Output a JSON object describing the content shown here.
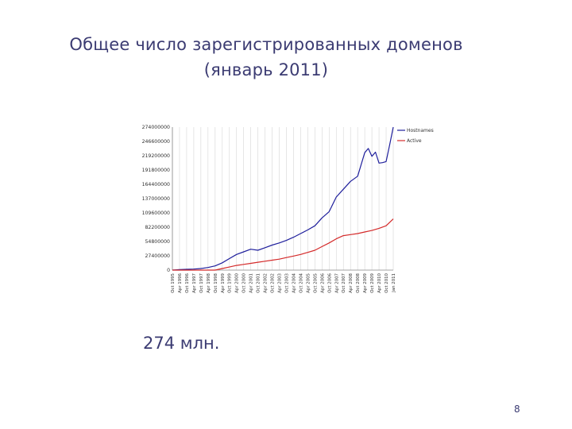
{
  "slide": {
    "title_line1": "Общее число зарегистрированных доменов",
    "title_line2": "(январь 2011)",
    "caption": "274 млн.",
    "page_number": "8"
  },
  "chart_data": {
    "type": "line",
    "title": "",
    "xlabel": "",
    "ylabel": "",
    "ylim": [
      0,
      274000000
    ],
    "yticks": [
      "0",
      "27400000",
      "54800000",
      "82200000",
      "109600000",
      "137000000",
      "164400000",
      "191800000",
      "219200000",
      "246600000",
      "274000000"
    ],
    "x_tick_labels": [
      "Oct 1995",
      "Apr 1996",
      "Oct 1996",
      "Apr 1997",
      "Oct 1997",
      "Apr 1998",
      "Oct 1998",
      "Apr 1999",
      "Oct 1999",
      "Apr 2000",
      "Oct 2000",
      "Apr 2001",
      "Oct 2001",
      "Apr 2002",
      "Oct 2002",
      "Apr 2003",
      "Oct 2003",
      "Apr 2004",
      "Oct 2004",
      "Apr 2005",
      "Oct 2005",
      "Apr 2006",
      "Oct 2006",
      "Apr 2007",
      "Oct 2007",
      "Apr 2008",
      "Oct 2008",
      "Apr 2009",
      "Oct 2009",
      "Apr 2010",
      "Oct 2010",
      "Jan 2011"
    ],
    "grid": true,
    "legend_position": "top-right",
    "series": [
      {
        "name": "Hostnames",
        "color": "#1f1f9c",
        "x": [
          0,
          1,
          2,
          3,
          4,
          5,
          6,
          7,
          8,
          9,
          10,
          11,
          12,
          13,
          14,
          15,
          16,
          17,
          18,
          19,
          20,
          21,
          22,
          23,
          24,
          25,
          26,
          27,
          27.5,
          28,
          28.5,
          29,
          29.5,
          30,
          30.5,
          31
        ],
        "values": [
          0,
          1000000,
          1500000,
          2000000,
          3000000,
          5000000,
          8000000,
          14000000,
          22000000,
          30000000,
          35000000,
          40000000,
          38000000,
          43000000,
          48000000,
          52000000,
          57000000,
          63000000,
          70000000,
          77000000,
          85000000,
          100000000,
          112000000,
          140000000,
          155000000,
          170000000,
          180000000,
          225000000,
          233000000,
          218000000,
          226000000,
          205000000,
          206000000,
          208000000,
          240000000,
          274000000
        ]
      },
      {
        "name": "Active",
        "color": "#d42a2a",
        "x": [
          0,
          1,
          2,
          3,
          4,
          5,
          6,
          7,
          8,
          9,
          10,
          11,
          12,
          13,
          14,
          15,
          16,
          17,
          18,
          19,
          20,
          21,
          22,
          23,
          24,
          25,
          26,
          27,
          28,
          29,
          30,
          31
        ],
        "values": [
          0,
          0,
          0,
          0,
          0,
          0,
          0,
          3000000,
          6000000,
          9000000,
          11000000,
          13000000,
          15000000,
          17000000,
          19000000,
          21000000,
          24000000,
          27000000,
          30000000,
          34000000,
          38000000,
          45000000,
          52000000,
          60000000,
          66000000,
          68000000,
          70000000,
          73000000,
          76000000,
          80000000,
          85000000,
          98000000
        ]
      }
    ]
  }
}
